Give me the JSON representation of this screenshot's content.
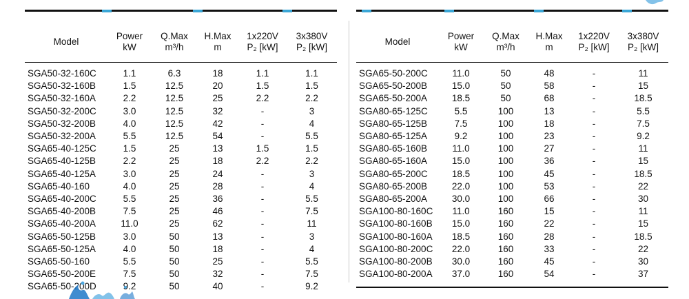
{
  "columns": {
    "model": "Model",
    "power": [
      "Power",
      "kW"
    ],
    "qmax": [
      "Q.Max",
      "m³/h"
    ],
    "hmax": [
      "H.Max",
      "m"
    ],
    "p1": [
      "1x220V",
      "P₂ [kW]"
    ],
    "p3": [
      "3x380V",
      "P₂ [kW]"
    ]
  },
  "left_rows": [
    [
      "SGA50-32-160C",
      "1.1",
      "6.3",
      "18",
      "1.1",
      "1.1"
    ],
    [
      "SGA50-32-160B",
      "1.5",
      "12.5",
      "20",
      "1.5",
      "1.5"
    ],
    [
      "SGA50-32-160A",
      "2.2",
      "12.5",
      "25",
      "2.2",
      "2.2"
    ],
    [
      "SGA50-32-200C",
      "3.0",
      "12.5",
      "32",
      "-",
      "3"
    ],
    [
      "SGA50-32-200B",
      "4.0",
      "12.5",
      "42",
      "-",
      "4"
    ],
    [
      "SGA50-32-200A",
      "5.5",
      "12.5",
      "54",
      "-",
      "5.5"
    ],
    [
      "SGA65-40-125C",
      "1.5",
      "25",
      "13",
      "1.5",
      "1.5"
    ],
    [
      "SGA65-40-125B",
      "2.2",
      "25",
      "18",
      "2.2",
      "2.2"
    ],
    [
      "SGA65-40-125A",
      "3.0",
      "25",
      "24",
      "-",
      "3"
    ],
    [
      "SGA65-40-160",
      "4.0",
      "25",
      "28",
      "-",
      "4"
    ],
    [
      "SGA65-40-200C",
      "5.5",
      "25",
      "36",
      "-",
      "5.5"
    ],
    [
      "SGA65-40-200B",
      "7.5",
      "25",
      "46",
      "-",
      "7.5"
    ],
    [
      "SGA65-40-200A",
      "11.0",
      "25",
      "62",
      "-",
      "11"
    ],
    [
      "SGA65-50-125B",
      "3.0",
      "50",
      "13",
      "-",
      "3"
    ],
    [
      "SGA65-50-125A",
      "4.0",
      "50",
      "18",
      "-",
      "4"
    ],
    [
      "SGA65-50-160",
      "5.5",
      "50",
      "25",
      "-",
      "5.5"
    ],
    [
      "SGA65-50-200E",
      "7.5",
      "50",
      "32",
      "-",
      "7.5"
    ],
    [
      "SGA65-50-200D",
      "9.2",
      "50",
      "40",
      "-",
      "9.2"
    ]
  ],
  "right_rows": [
    [
      "SGA65-50-200C",
      "11.0",
      "50",
      "48",
      "-",
      "11"
    ],
    [
      "SGA65-50-200B",
      "15.0",
      "50",
      "58",
      "-",
      "15"
    ],
    [
      "SGA65-50-200A",
      "18.5",
      "50",
      "68",
      "-",
      "18.5"
    ],
    [
      "SGA80-65-125C",
      "5.5",
      "100",
      "13",
      "-",
      "5.5"
    ],
    [
      "SGA80-65-125B",
      "7.5",
      "100",
      "18",
      "-",
      "7.5"
    ],
    [
      "SGA80-65-125A",
      "9.2",
      "100",
      "23",
      "-",
      "9.2"
    ],
    [
      "SGA80-65-160B",
      "11.0",
      "100",
      "27",
      "-",
      "11"
    ],
    [
      "SGA80-65-160A",
      "15.0",
      "100",
      "36",
      "-",
      "15"
    ],
    [
      "SGA80-65-200C",
      "18.5",
      "100",
      "45",
      "-",
      "18.5"
    ],
    [
      "SGA80-65-200B",
      "22.0",
      "100",
      "53",
      "-",
      "22"
    ],
    [
      "SGA80-65-200A",
      "30.0",
      "100",
      "66",
      "-",
      "30"
    ],
    [
      "SGA100-80-160C",
      "11.0",
      "160",
      "15",
      "-",
      "11"
    ],
    [
      "SGA100-80-160B",
      "15.0",
      "160",
      "22",
      "-",
      "15"
    ],
    [
      "SGA100-80-160A",
      "18.5",
      "160",
      "28",
      "-",
      "18.5"
    ],
    [
      "SGA100-80-200C",
      "22.0",
      "160",
      "33",
      "-",
      "22"
    ],
    [
      "SGA100-80-200B",
      "30.0",
      "160",
      "45",
      "-",
      "30"
    ],
    [
      "SGA100-80-200A",
      "37.0",
      "160",
      "54",
      "-",
      "37"
    ]
  ],
  "colors": {
    "accent": "#3aa6d6",
    "rule": "#111111",
    "splash": "#1e78c8"
  },
  "decor": {
    "water_splash_icon": "water-splash-icon"
  }
}
